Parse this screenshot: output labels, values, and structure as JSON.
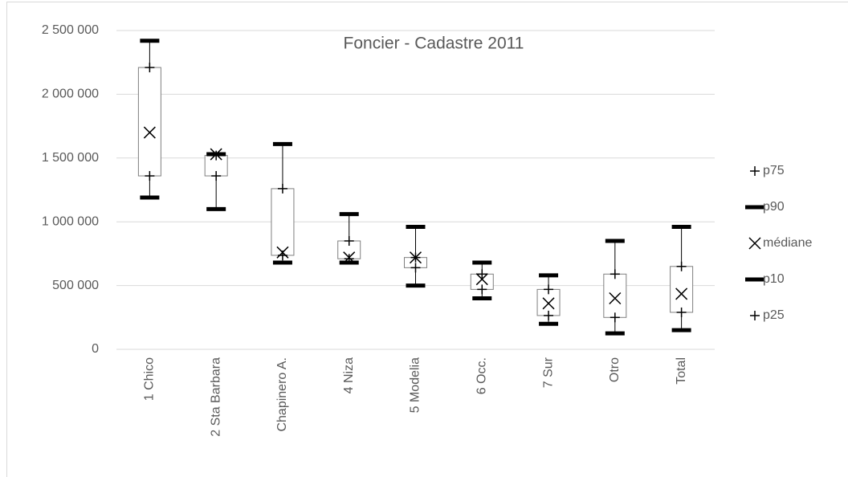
{
  "chart_data": {
    "type": "box",
    "title": "Foncier - Cadastre 2011",
    "categories": [
      "1 Chico",
      "2 Sta Barbara",
      "Chapinero A.",
      "4 Niza",
      "5 Modelia",
      "6 Occ.",
      "7 Sur",
      "Otro",
      "Total"
    ],
    "series": [
      {
        "name": "p75",
        "color": "#000000",
        "marker": "plus",
        "values": [
          2210000,
          1520000,
          1260000,
          850000,
          720000,
          590000,
          470000,
          590000,
          650000
        ]
      },
      {
        "name": "p90",
        "color": "#000000",
        "marker": "dash",
        "values": [
          2420000,
          1530000,
          1610000,
          1060000,
          960000,
          680000,
          580000,
          850000,
          960000
        ]
      },
      {
        "name": "médiane",
        "color": "#000000",
        "marker": "x",
        "values": [
          1700000,
          1530000,
          760000,
          720000,
          720000,
          550000,
          360000,
          400000,
          435000
        ]
      },
      {
        "name": "p10",
        "color": "#000000",
        "marker": "dash",
        "values": [
          1190000,
          1100000,
          680000,
          680000,
          500000,
          400000,
          200000,
          125000,
          150000
        ]
      },
      {
        "name": "p25",
        "color": "#000000",
        "marker": "plus",
        "values": [
          1360000,
          1360000,
          737000,
          710000,
          640000,
          470000,
          265000,
          250000,
          290000
        ]
      }
    ],
    "ylim": [
      0,
      2500000
    ],
    "yticks": [
      0,
      {
        "value": 500000,
        "label": "500 000"
      },
      {
        "value": 1000000,
        "label": "1 000 000"
      },
      {
        "value": 1500000,
        "label": "1 500 000"
      },
      {
        "value": 2000000,
        "label": "2 000 000"
      },
      {
        "value": 2500000,
        "label": "2 500 000"
      }
    ],
    "grid": true,
    "legend": "right"
  }
}
